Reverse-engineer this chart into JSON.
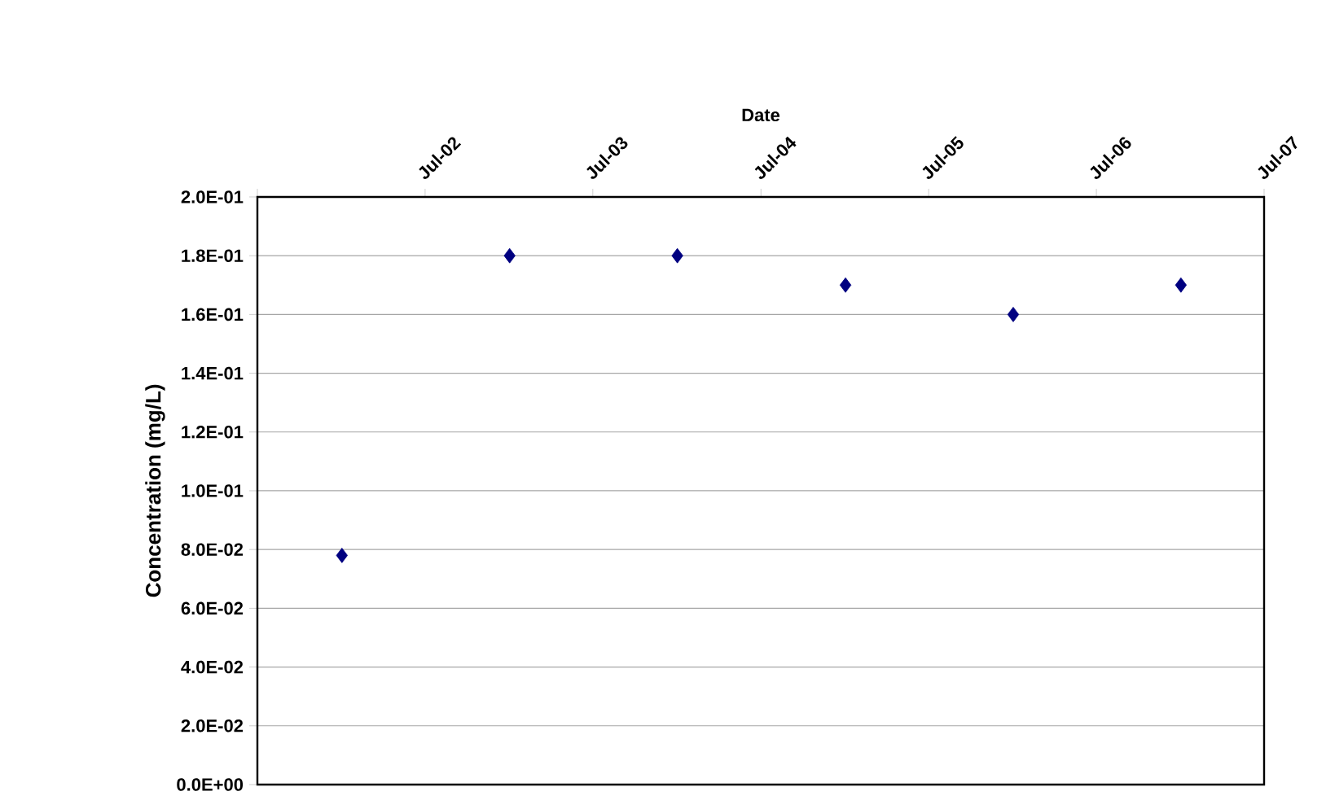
{
  "chart_data": {
    "type": "scatter",
    "xlabel": "Date",
    "ylabel": "Concentration (mg/L)",
    "x": [
      "2002-01-01",
      "2003-01-01",
      "2004-01-01",
      "2005-01-01",
      "2006-01-01",
      "2007-01-01"
    ],
    "series": [
      {
        "color": "#000080",
        "values": [
          0.078,
          0.18,
          0.18,
          0.17,
          0.16,
          0.17
        ]
      }
    ],
    "xlim": [
      "2001-07-01",
      "2007-07-01"
    ],
    "xticks": [
      {
        "value": "2001-07-01",
        "label": null
      },
      {
        "value": "2002-07-01",
        "label": "Jul-02"
      },
      {
        "value": "2003-07-01",
        "label": "Jul-03"
      },
      {
        "value": "2004-07-01",
        "label": "Jul-04"
      },
      {
        "value": "2005-07-01",
        "label": "Jul-05"
      },
      {
        "value": "2006-07-01",
        "label": "Jul-06"
      },
      {
        "value": "2007-07-01",
        "label": "Jul-07"
      }
    ],
    "ylim": [
      0,
      0.2
    ],
    "yticks": [
      {
        "value": 0,
        "label": "0.0E+00"
      },
      {
        "value": 0.02,
        "label": "2.0E-02"
      },
      {
        "value": 0.04,
        "label": "4.0E-02"
      },
      {
        "value": 0.06,
        "label": "6.0E-02"
      },
      {
        "value": 0.08,
        "label": "8.0E-02"
      },
      {
        "value": 0.1,
        "label": "1.0E-01"
      },
      {
        "value": 0.12,
        "label": "1.2E-01"
      },
      {
        "value": 0.14,
        "label": "1.4E-01"
      },
      {
        "value": 0.16,
        "label": "1.6E-01"
      },
      {
        "value": 0.18,
        "label": "1.8E-01"
      },
      {
        "value": 0.2,
        "label": "2.0E-01"
      }
    ],
    "grid": "y",
    "marker": "diamond"
  }
}
